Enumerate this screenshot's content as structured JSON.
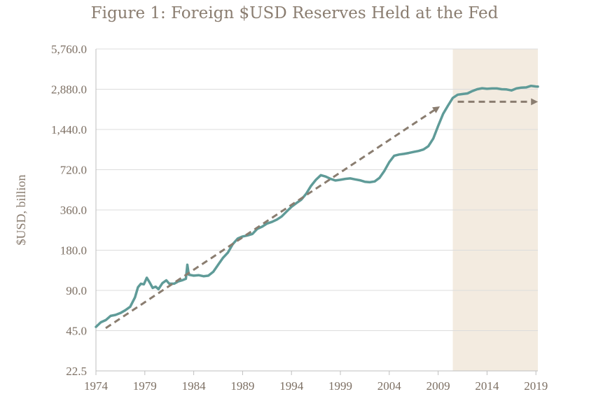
{
  "chart_data": {
    "type": "line",
    "title": "Figure 1: Foreign $USD Reserves Held at the Fed",
    "xlabel": "",
    "ylabel": "$USD, billion",
    "yscale": "log2",
    "ylim": [
      22.5,
      5760.0
    ],
    "xlim": [
      1974,
      2019.2
    ],
    "yticks": [
      22.5,
      45.0,
      90.0,
      180.0,
      360.0,
      720.0,
      1440.0,
      2880.0,
      5760.0
    ],
    "ytick_labels": [
      "22.5",
      "45.0",
      "90.0",
      "180.0",
      "360.0",
      "720.0",
      "1,440.0",
      "2,880.0",
      "5,760.0"
    ],
    "xticks": [
      1974,
      1979,
      1984,
      1989,
      1994,
      1999,
      2004,
      2009,
      2014,
      2019
    ],
    "xtick_labels": [
      "1974",
      "1979",
      "1984",
      "1989",
      "1994",
      "1999",
      "2004",
      "2009",
      "2014",
      "2019"
    ],
    "grid": true,
    "shaded_region": {
      "x_start": 2010.5,
      "x_end": 2019.2,
      "color": "#f3ebe0"
    },
    "series": [
      {
        "name": "Foreign $USD reserves",
        "color": "#5f9b98",
        "points": [
          [
            1974.0,
            48
          ],
          [
            1974.5,
            52
          ],
          [
            1975.0,
            54
          ],
          [
            1975.5,
            58
          ],
          [
            1976.0,
            59
          ],
          [
            1976.5,
            61
          ],
          [
            1977.0,
            64
          ],
          [
            1977.5,
            68
          ],
          [
            1978.0,
            80
          ],
          [
            1978.3,
            95
          ],
          [
            1978.6,
            101
          ],
          [
            1978.9,
            100
          ],
          [
            1979.2,
            112
          ],
          [
            1979.5,
            103
          ],
          [
            1979.8,
            94
          ],
          [
            1980.1,
            96
          ],
          [
            1980.4,
            92
          ],
          [
            1980.8,
            102
          ],
          [
            1981.2,
            107
          ],
          [
            1981.5,
            101
          ],
          [
            1982.0,
            101
          ],
          [
            1982.4,
            105
          ],
          [
            1982.8,
            107
          ],
          [
            1983.2,
            110
          ],
          [
            1983.35,
            140
          ],
          [
            1983.5,
            118
          ],
          [
            1984.0,
            116
          ],
          [
            1984.5,
            117
          ],
          [
            1985.0,
            115
          ],
          [
            1985.5,
            116
          ],
          [
            1986.0,
            124
          ],
          [
            1986.5,
            140
          ],
          [
            1987.0,
            158
          ],
          [
            1987.5,
            173
          ],
          [
            1988.0,
            200
          ],
          [
            1988.5,
            220
          ],
          [
            1989.0,
            228
          ],
          [
            1989.5,
            232
          ],
          [
            1990.0,
            238
          ],
          [
            1990.5,
            260
          ],
          [
            1991.0,
            270
          ],
          [
            1991.5,
            285
          ],
          [
            1992.0,
            293
          ],
          [
            1992.5,
            305
          ],
          [
            1993.0,
            322
          ],
          [
            1993.5,
            350
          ],
          [
            1994.0,
            380
          ],
          [
            1994.5,
            405
          ],
          [
            1995.0,
            430
          ],
          [
            1995.5,
            475
          ],
          [
            1996.0,
            545
          ],
          [
            1996.5,
            605
          ],
          [
            1997.0,
            655
          ],
          [
            1997.5,
            640
          ],
          [
            1998.0,
            615
          ],
          [
            1998.5,
            598
          ],
          [
            1999.0,
            605
          ],
          [
            1999.5,
            615
          ],
          [
            2000.0,
            620
          ],
          [
            2000.5,
            610
          ],
          [
            2001.0,
            600
          ],
          [
            2001.5,
            585
          ],
          [
            2002.0,
            580
          ],
          [
            2002.5,
            588
          ],
          [
            2003.0,
            625
          ],
          [
            2003.5,
            705
          ],
          [
            2004.0,
            820
          ],
          [
            2004.5,
            915
          ],
          [
            2005.0,
            935
          ],
          [
            2005.5,
            945
          ],
          [
            2006.0,
            960
          ],
          [
            2006.5,
            978
          ],
          [
            2007.0,
            995
          ],
          [
            2007.5,
            1020
          ],
          [
            2008.0,
            1080
          ],
          [
            2008.5,
            1230
          ],
          [
            2009.0,
            1530
          ],
          [
            2009.5,
            1880
          ],
          [
            2010.0,
            2170
          ],
          [
            2010.5,
            2480
          ],
          [
            2011.0,
            2620
          ],
          [
            2011.5,
            2650
          ],
          [
            2012.0,
            2680
          ],
          [
            2012.5,
            2790
          ],
          [
            2013.0,
            2880
          ],
          [
            2013.5,
            2930
          ],
          [
            2014.0,
            2900
          ],
          [
            2014.5,
            2920
          ],
          [
            2015.0,
            2920
          ],
          [
            2015.5,
            2880
          ],
          [
            2016.0,
            2870
          ],
          [
            2016.5,
            2820
          ],
          [
            2017.0,
            2920
          ],
          [
            2017.5,
            2960
          ],
          [
            2018.0,
            2970
          ],
          [
            2018.5,
            3050
          ],
          [
            2019.0,
            3020
          ],
          [
            2019.2,
            3010
          ]
        ]
      }
    ],
    "annotations": [
      {
        "name": "trend-arrow",
        "style": "dashed-arrow",
        "color": "#8a7d70",
        "from": [
          1975.0,
          47
        ],
        "to": [
          2009.0,
          2100
        ]
      },
      {
        "name": "flat-arrow",
        "style": "dashed-arrow",
        "color": "#8a7d70",
        "from": [
          2011.0,
          2320
        ],
        "to": [
          2019.0,
          2320
        ]
      }
    ]
  }
}
